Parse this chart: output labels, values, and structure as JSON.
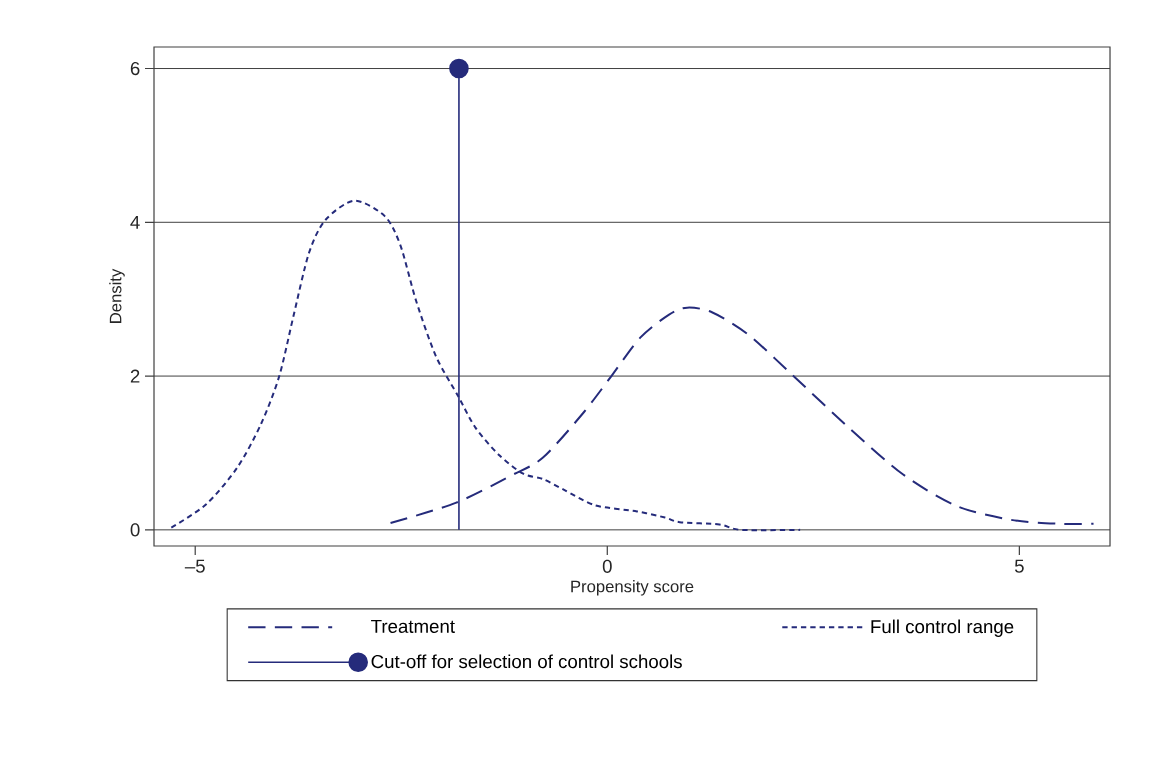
{
  "chart_data": {
    "type": "line",
    "xlabel": "Propensity score",
    "ylabel": "Density",
    "xlim": [
      -5.5,
      6.1
    ],
    "ylim": [
      -0.21,
      6.28
    ],
    "xticks": [
      {
        "value": -5,
        "label": "–5"
      },
      0,
      5
    ],
    "yticks": [
      0,
      2,
      4,
      6
    ],
    "grid": "y",
    "legend": "bottom",
    "series": [
      {
        "name": "Treatment",
        "color": "#252b7b",
        "line_style": "dashed",
        "x": [
          -2.63,
          -1.84,
          -1.16,
          -0.78,
          -0.3,
          0.05,
          0.4,
          0.75,
          0.97,
          1.27,
          1.71,
          2.23,
          2.93,
          3.59,
          4.24,
          4.9,
          5.46,
          5.9
        ],
        "values": [
          0.09,
          0.35,
          0.71,
          0.94,
          1.51,
          2.0,
          2.5,
          2.8,
          2.89,
          2.83,
          2.54,
          2.03,
          1.33,
          0.72,
          0.31,
          0.13,
          0.08,
          0.08
        ]
      },
      {
        "name": "Full control range",
        "color": "#252b7b",
        "line_style": "dotted",
        "x": [
          -5.29,
          -4.87,
          -4.49,
          -4.2,
          -3.98,
          -3.81,
          -3.62,
          -3.42,
          -3.07,
          -2.7,
          -2.51,
          -2.32,
          -2.08,
          -1.81,
          -1.6,
          -1.31,
          -1.02,
          -0.78,
          -0.54,
          -0.15,
          0.36,
          0.7,
          0.88,
          1.36,
          1.62,
          2.34
        ],
        "values": [
          0.03,
          0.33,
          0.81,
          1.38,
          2.0,
          2.77,
          3.6,
          4.03,
          4.28,
          4.08,
          3.7,
          2.98,
          2.26,
          1.74,
          1.33,
          0.97,
          0.73,
          0.66,
          0.53,
          0.32,
          0.24,
          0.16,
          0.1,
          0.07,
          0.0,
          0.0
        ]
      },
      {
        "name": "Cut-off for selection of control schools",
        "type": "lollipop",
        "color": "#252b7b",
        "marker": "circle",
        "line_style": "solid",
        "x": [
          -1.8
        ],
        "values": [
          6
        ]
      }
    ]
  }
}
